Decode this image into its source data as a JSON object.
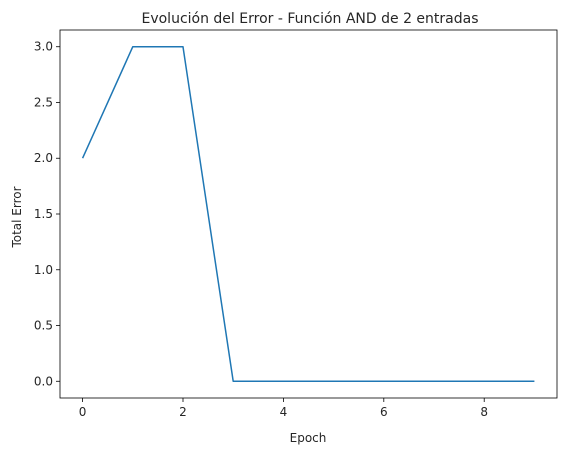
{
  "chart_data": {
    "type": "line",
    "title": "Evolución del Error - Función AND de 2 entradas",
    "xlabel": "Epoch",
    "ylabel": "Total Error",
    "x": [
      0,
      1,
      2,
      3,
      4,
      5,
      6,
      7,
      8,
      9
    ],
    "series": [
      {
        "values": [
          2,
          3,
          3,
          0,
          0,
          0,
          0,
          0,
          0,
          0
        ],
        "color": "#1f77b4"
      }
    ],
    "xlim": [
      -0.45,
      9.45
    ],
    "ylim": [
      -0.15,
      3.15
    ],
    "xticks": [
      0,
      2,
      4,
      6,
      8
    ],
    "xtick_labels": [
      "0",
      "2",
      "4",
      "6",
      "8"
    ],
    "yticks": [
      0.0,
      0.5,
      1.0,
      1.5,
      2.0,
      2.5,
      3.0
    ],
    "ytick_labels": [
      "0.0",
      "0.5",
      "1.0",
      "1.5",
      "2.0",
      "2.5",
      "3.0"
    ],
    "grid": false,
    "legend": false
  }
}
